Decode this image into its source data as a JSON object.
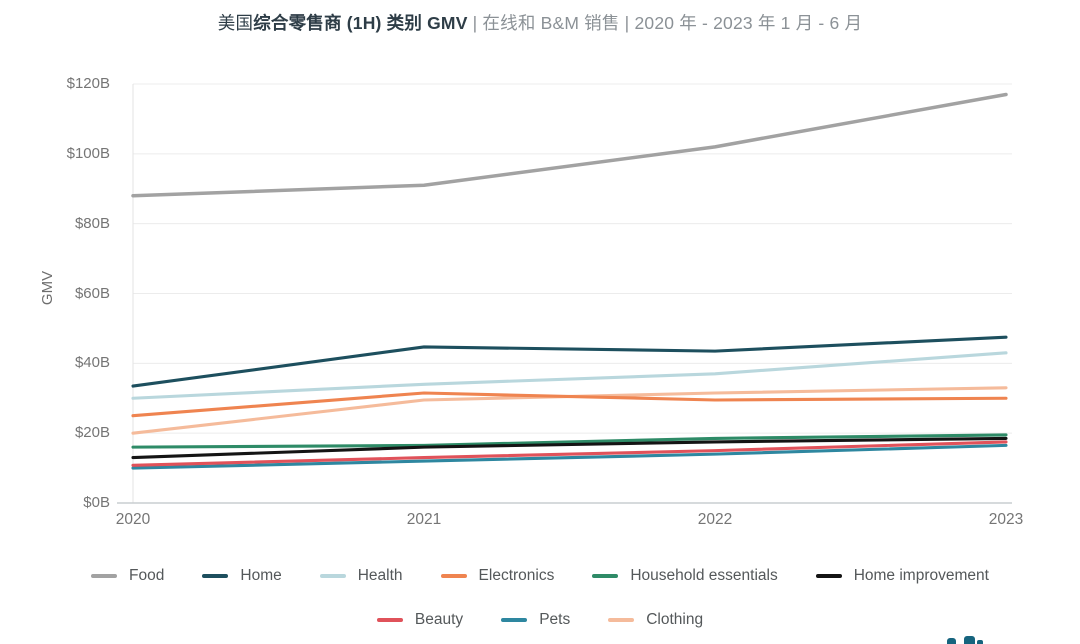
{
  "title": {
    "prefix": "美国",
    "bold": "综合零售商 (1H) 类别 GMV",
    "suffix": " | 在线和 B&M 销售 | 2020 年 - 2023 年 1 月 - 6 月"
  },
  "chart_data": {
    "type": "line",
    "title": "美国综合零售商 (1H) 类别 GMV | 在线和 B&M 销售 | 2020 年 - 2023 年 1 月 - 6 月",
    "x": [
      "2020",
      "2021",
      "2022",
      "2023"
    ],
    "xlabel": "",
    "ylabel": "GMV",
    "ylim": [
      0,
      120
    ],
    "ytick_step": 20,
    "ytick_labels": [
      "$0B",
      "$20B",
      "$40B",
      "$60B",
      "$80B",
      "$100B",
      "$120B"
    ],
    "grid": true,
    "legend_position": "bottom",
    "legend_rows": [
      6,
      3
    ],
    "series": [
      {
        "name": "Food",
        "color": "#a2a2a2",
        "values": [
          88,
          91,
          102,
          117
        ]
      },
      {
        "name": "Home",
        "color": "#1d4f5e",
        "values": [
          33.5,
          44.7,
          43.5,
          47.5
        ]
      },
      {
        "name": "Health",
        "color": "#b9d7dd",
        "values": [
          30,
          34,
          37,
          43
        ]
      },
      {
        "name": "Electronics",
        "color": "#ef8450",
        "values": [
          25,
          31.5,
          29.5,
          30
        ]
      },
      {
        "name": "Household essentials",
        "color": "#2e8b67",
        "values": [
          16,
          16.5,
          18.5,
          19.5
        ]
      },
      {
        "name": "Home improvement",
        "color": "#141414",
        "values": [
          13,
          16,
          17.5,
          18.5
        ]
      },
      {
        "name": "Beauty",
        "color": "#e0525a",
        "values": [
          10.8,
          13,
          15,
          17.5
        ]
      },
      {
        "name": "Pets",
        "color": "#2e87a0",
        "values": [
          10,
          12,
          14,
          16.5
        ]
      },
      {
        "name": "Clothing",
        "color": "#f5bb9b",
        "values": [
          20,
          29.5,
          31.5,
          33
        ]
      }
    ]
  },
  "watermark": {
    "color": "#16647e"
  }
}
